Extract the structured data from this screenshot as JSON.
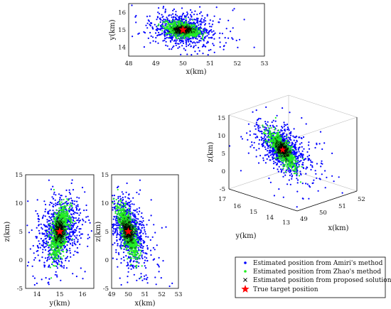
{
  "chart_data": [
    {
      "id": "xy",
      "type": "scatter",
      "xlabel": "x(km)",
      "ylabel": "y(km)",
      "xlim": [
        48,
        53
      ],
      "ylim": [
        13.5,
        16.5
      ],
      "xticks": [
        "48",
        "49",
        "50",
        "51",
        "52",
        "53"
      ],
      "yticks": [
        "14",
        "15",
        "16"
      ],
      "grid": false
    },
    {
      "id": "yz",
      "type": "scatter",
      "xlabel": "y(km)",
      "ylabel": "z(km)",
      "xlim": [
        13.5,
        16.5
      ],
      "ylim": [
        -5,
        15
      ],
      "xticks": [
        "14",
        "15",
        "16"
      ],
      "yticks": [
        "-5",
        "0",
        "5",
        "10",
        "15"
      ],
      "grid": false
    },
    {
      "id": "xz",
      "type": "scatter",
      "xlabel": "x(km)",
      "ylabel": "z(km)",
      "xlim": [
        49,
        53
      ],
      "ylim": [
        -5,
        15
      ],
      "xticks": [
        "49",
        "50",
        "51",
        "52",
        "53"
      ],
      "yticks": [
        "-5",
        "0",
        "5",
        "10",
        "15"
      ],
      "grid": false
    },
    {
      "id": "xyz",
      "type": "scatter",
      "xlabel": "x(km)",
      "ylabel": "y(km)",
      "zlabel": "z(km)",
      "xticks": [
        "49",
        "50",
        "51",
        "52"
      ],
      "yticks": [
        "13",
        "14",
        "15",
        "16",
        "17"
      ],
      "zticks": [
        "-5",
        "0",
        "5",
        "10",
        "15"
      ],
      "grid": false
    }
  ],
  "distributions": {
    "target": {
      "x": 50.0,
      "y": 15.0,
      "z": 5.0
    },
    "amiri": {
      "spread_x": 0.55,
      "spread_y": 0.45,
      "spread_z": 3.0,
      "corr_xy": -0.2,
      "corr_xz": -0.45,
      "corr_yz": 0.35
    },
    "zhao": {
      "spread_x": 0.3,
      "spread_y": 0.2,
      "spread_z": 2.3,
      "corr_xy": -0.3,
      "corr_xz": -0.7,
      "corr_yz": 0.55
    },
    "proposed": {
      "spread_x": 0.18,
      "spread_y": 0.1,
      "spread_z": 1.1
    }
  },
  "legend": {
    "placement": "bottom-right",
    "entries": [
      {
        "label": "Estimated position from Amiri's method",
        "color": "#0000ff",
        "marker": "dot"
      },
      {
        "label": "Estimated position from Zhao's method",
        "color": "#22ee22",
        "marker": "dot"
      },
      {
        "label": "Estimated position from proposed solution",
        "color": "#000000",
        "marker": "x"
      },
      {
        "label": "True target position",
        "color": "#ff0000",
        "marker": "star"
      }
    ]
  },
  "colors": {
    "amiri": "#0000ff",
    "zhao": "#22ee22",
    "proposed": "#000000",
    "target": "#ff0000"
  }
}
